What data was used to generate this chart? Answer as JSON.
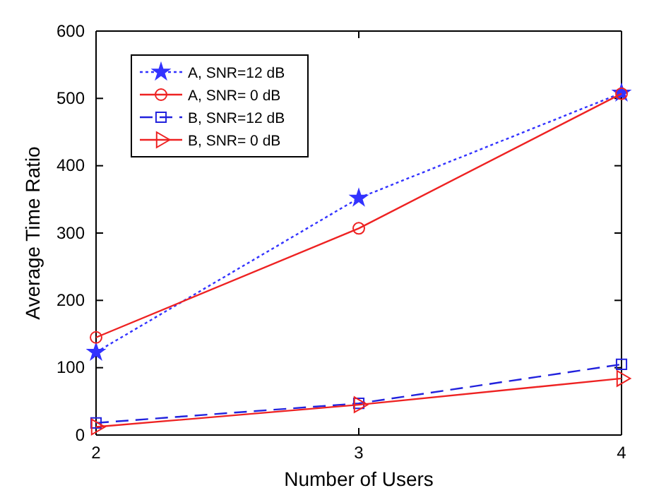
{
  "chart_data": {
    "type": "line",
    "xlabel": "Number of Users",
    "ylabel": "Average Time Ratio",
    "x": [
      2,
      3,
      4
    ],
    "xlim": [
      2,
      4
    ],
    "xticks": [
      2,
      3,
      4
    ],
    "ylim": [
      0,
      600
    ],
    "yticks": [
      0,
      100,
      200,
      300,
      400,
      500,
      600
    ],
    "grid": false,
    "legend": "top left",
    "series": [
      {
        "name": "A, SNR=12 dB",
        "color": "#3333ff",
        "values": [
          123,
          352,
          508
        ],
        "marker": "star",
        "line_style": "dotted"
      },
      {
        "name": "A, SNR= 0 dB",
        "color": "#ee2222",
        "values": [
          145,
          307,
          507
        ],
        "marker": "circle",
        "line_style": "solid"
      },
      {
        "name": "B, SNR=12 dB",
        "color": "#2222dd",
        "values": [
          18,
          47,
          105
        ],
        "marker": "square",
        "line_style": "dashed"
      },
      {
        "name": "B, SNR= 0 dB",
        "color": "#ee2222",
        "values": [
          12,
          45,
          84
        ],
        "marker": "triangle",
        "line_style": "solid"
      }
    ]
  }
}
